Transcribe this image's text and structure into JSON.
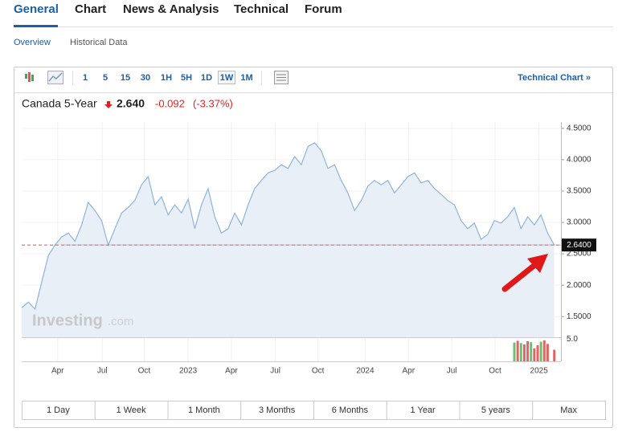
{
  "tabs": [
    "General",
    "Chart",
    "News & Analysis",
    "Technical",
    "Forum"
  ],
  "subtabs": [
    "Overview",
    "Historical Data"
  ],
  "toolbar": {
    "intervals": [
      "1",
      "5",
      "15",
      "30",
      "1H",
      "5H",
      "1D",
      "1W",
      "1M"
    ],
    "link": "Technical Chart »"
  },
  "quote": {
    "name": "Canada 5-Year",
    "price": "2.640",
    "change": "-0.092",
    "change_pct": "(-3.37%)"
  },
  "watermark": {
    "brand": "Investing",
    "suffix": ".com"
  },
  "ranges": [
    "1 Day",
    "1 Week",
    "1 Month",
    "3 Months",
    "6 Months",
    "1 Year",
    "5 years",
    "Max"
  ],
  "chart_data": {
    "type": "area",
    "series": [
      {
        "name": "Canada 5-Year",
        "color": "#8db4da",
        "values": [
          1.64,
          1.73,
          1.62,
          2.05,
          2.47,
          2.64,
          2.77,
          2.83,
          2.7,
          2.96,
          3.32,
          3.19,
          3.03,
          2.64,
          2.9,
          3.15,
          3.24,
          3.35,
          3.6,
          3.73,
          3.28,
          3.41,
          3.12,
          3.28,
          3.15,
          3.37,
          2.9,
          3.28,
          3.54,
          3.09,
          2.83,
          2.9,
          3.15,
          2.96,
          3.28,
          3.54,
          3.67,
          3.79,
          3.83,
          3.92,
          3.86,
          4.05,
          3.92,
          4.21,
          4.27,
          4.14,
          3.86,
          3.92,
          3.67,
          3.47,
          3.19,
          3.35,
          3.58,
          3.67,
          3.6,
          3.67,
          3.47,
          3.6,
          3.73,
          3.79,
          3.63,
          3.67,
          3.54,
          3.45,
          3.35,
          3.28,
          3.03,
          2.9,
          2.99,
          2.73,
          2.81,
          3.03,
          2.99,
          3.09,
          3.24,
          2.9,
          3.09,
          2.96,
          3.12,
          2.83,
          2.64
        ]
      }
    ],
    "xlim": [
      0,
      81
    ],
    "xticks": [
      {
        "value": 5.4,
        "label": "Apr"
      },
      {
        "value": 12.1,
        "label": "Jul"
      },
      {
        "value": 18.4,
        "label": "Oct"
      },
      {
        "value": 25,
        "label": "2023"
      },
      {
        "value": 31.5,
        "label": "Apr"
      },
      {
        "value": 38.1,
        "label": "Jul"
      },
      {
        "value": 44.5,
        "label": "Oct"
      },
      {
        "value": 51.6,
        "label": "2024"
      },
      {
        "value": 58.1,
        "label": "Apr"
      },
      {
        "value": 64.6,
        "label": "Jul"
      },
      {
        "value": 71.1,
        "label": "Oct"
      },
      {
        "value": 77.7,
        "label": "2025"
      }
    ],
    "ylim": [
      1.17,
      4.6
    ],
    "yticks": [
      {
        "value": 1.5,
        "label": "1.5000"
      },
      {
        "value": 2,
        "label": "2.0000"
      },
      {
        "value": 2.5,
        "label": "2.5000"
      },
      {
        "value": 3,
        "label": "3.0000"
      },
      {
        "value": 3.5,
        "label": "3.5000"
      },
      {
        "value": 4,
        "label": "4.0000"
      },
      {
        "value": 4.5,
        "label": "4.5000"
      }
    ],
    "current": {
      "value": 2.64,
      "label": "2.6400"
    },
    "grid": true,
    "volume": {
      "x": [
        74,
        74.5,
        75,
        75.5,
        76,
        76.5,
        77,
        77.5,
        78,
        78.5,
        79,
        80
      ],
      "values": [
        4.2,
        4.6,
        4.1,
        3.8,
        4.5,
        4.3,
        2.9,
        3.6,
        4.4,
        4.7,
        3.9,
        2.6
      ],
      "colors": [
        "#6fbf73",
        "#e06666",
        "#6fbf73",
        "#e06666",
        "#e06666",
        "#6fbf73",
        "#e06666",
        "#e06666",
        "#6fbf73",
        "#e06666",
        "#e06666",
        "#e06666"
      ],
      "ylim": [
        0,
        5.4
      ],
      "yticks": [
        {
          "value": 5,
          "label": "5.0"
        }
      ]
    }
  }
}
